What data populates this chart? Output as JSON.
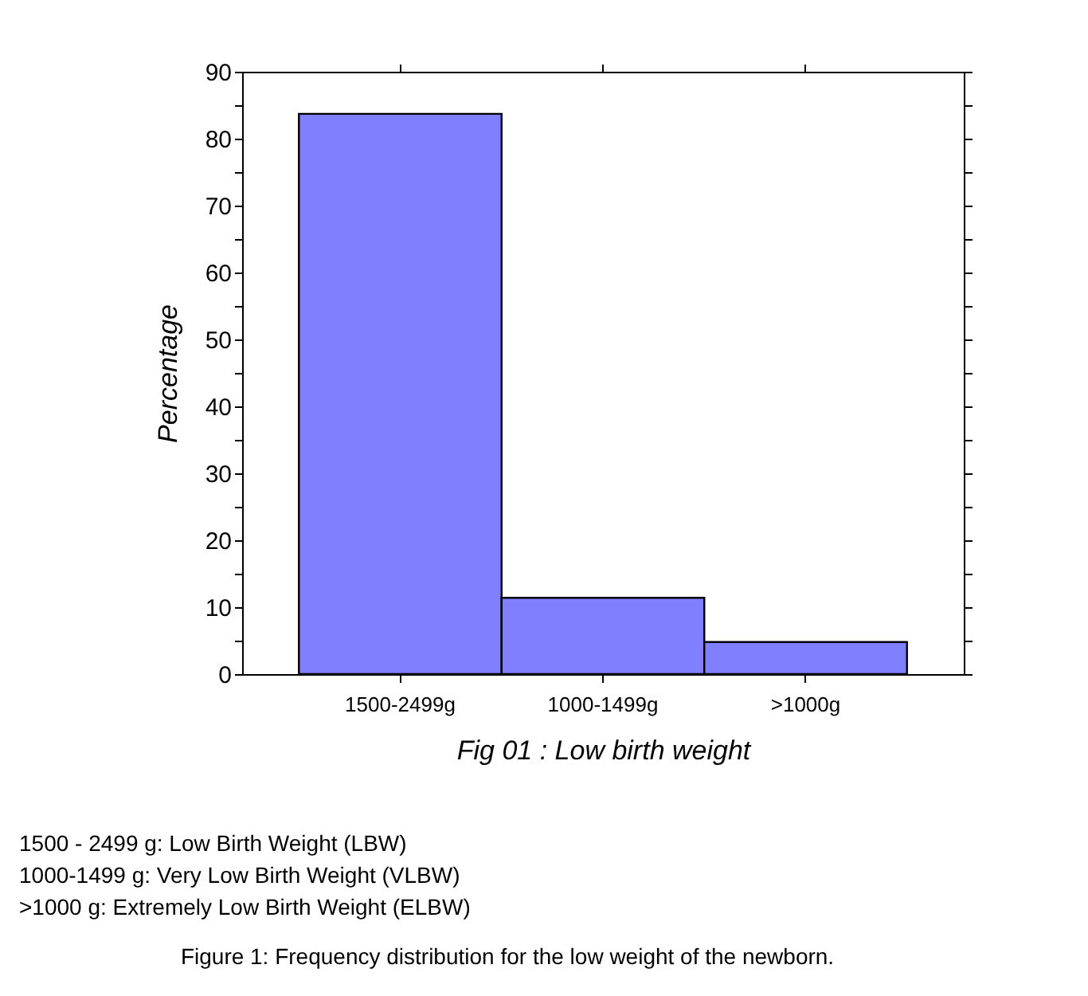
{
  "chart_data": {
    "type": "bar",
    "categories": [
      "1500-2499g",
      "1000-1499g",
      ">1000g"
    ],
    "values": [
      83.7,
      11.4,
      4.8
    ],
    "color": "#8080ff",
    "xlabel": "Fig 01 : Low birth weight",
    "ylabel": "Percentage",
    "ylim": [
      0,
      90
    ],
    "yticks": [
      0,
      {
        "value": 5,
        "label": null
      },
      10,
      {
        "value": 15,
        "label": null
      },
      20,
      {
        "value": 25,
        "label": null
      },
      30,
      {
        "value": 35,
        "label": null
      },
      40,
      {
        "value": 45,
        "label": null
      },
      50,
      {
        "value": 55,
        "label": null
      },
      60,
      {
        "value": 65,
        "label": null
      },
      70,
      {
        "value": 75,
        "label": null
      },
      80,
      {
        "value": 85,
        "label": null
      },
      90
    ],
    "grid": false,
    "annotations": [
      "1500 - 2499 g: Low Birth Weight (LBW)",
      "1000-1499 g: Very Low Birth Weight (VLBW)",
      ">1000 g: Extremely Low Birth Weight (ELBW)",
      "Figure 1: Frequency distribution for the low weight of the newborn."
    ]
  }
}
